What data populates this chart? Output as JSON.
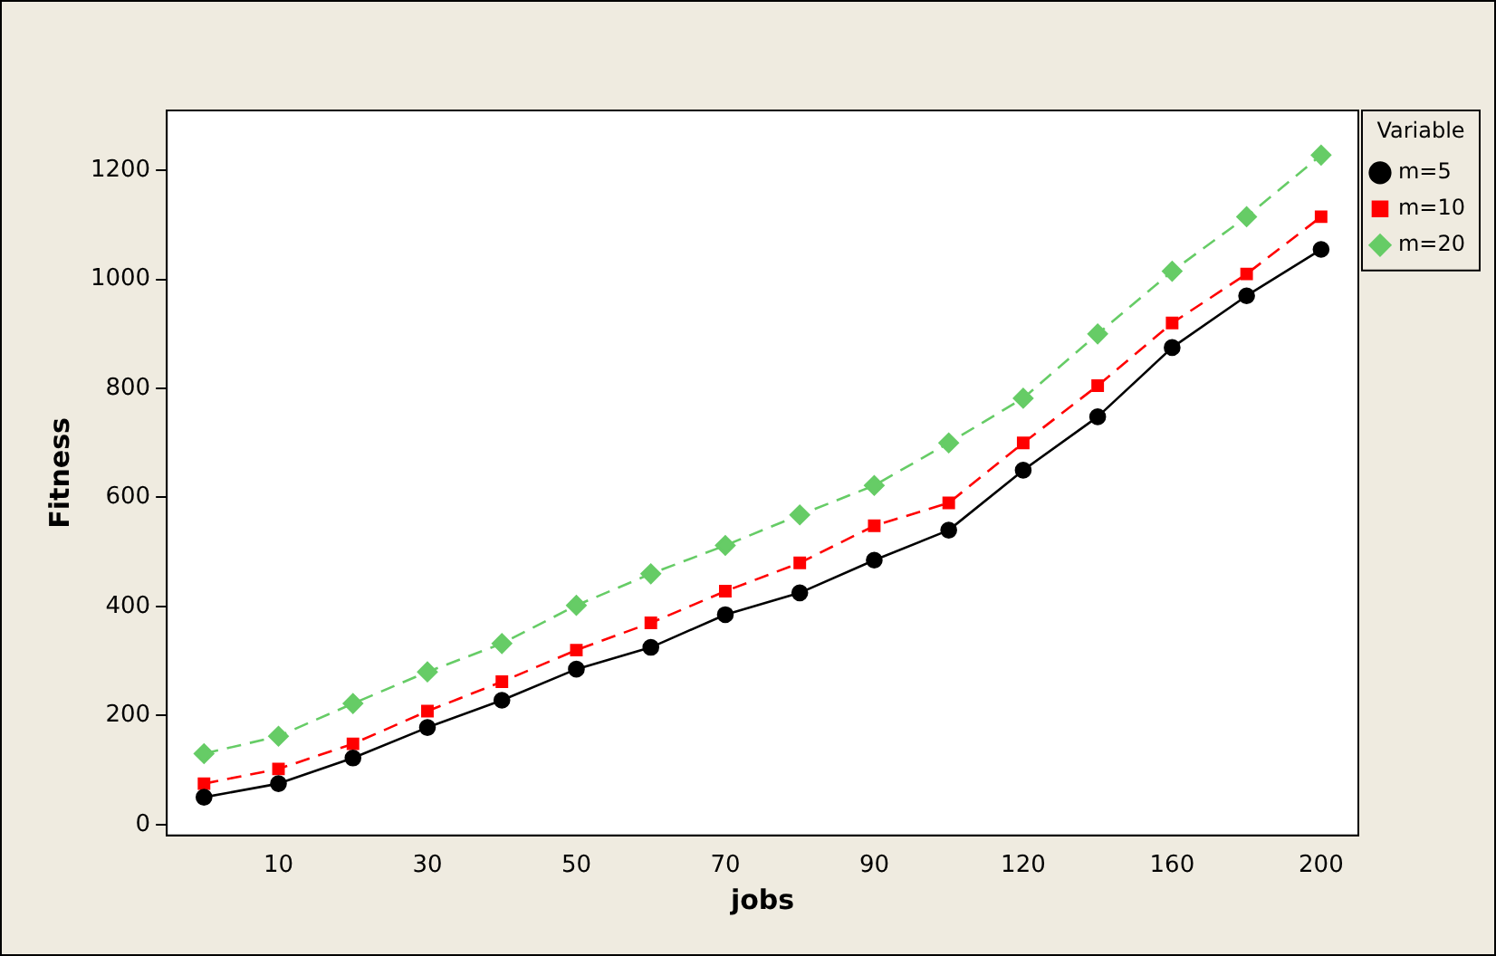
{
  "chart_data": {
    "type": "line",
    "xlabel": "jobs",
    "ylabel": "Fitness",
    "legend_title": "Variable",
    "legend": "top right",
    "grid": false,
    "categories": [
      null,
      "10",
      null,
      "30",
      null,
      "50",
      null,
      "70",
      null,
      "90",
      null,
      "120",
      null,
      "160",
      null,
      "200"
    ],
    "ylim": [
      -20,
      1310
    ],
    "yticks": [
      0,
      200,
      400,
      600,
      800,
      1000,
      1200
    ],
    "series": [
      {
        "name": "m=5",
        "color": "#000000",
        "marker": "circle",
        "line_style": "solid",
        "values": [
          50,
          75,
          122,
          178,
          228,
          285,
          325,
          385,
          425,
          485,
          540,
          650,
          748,
          875,
          970,
          1055
        ]
      },
      {
        "name": "m=10",
        "color": "#ff0000",
        "marker": "square",
        "line_style": "dashed",
        "values": [
          75,
          102,
          148,
          208,
          262,
          320,
          370,
          428,
          480,
          548,
          590,
          700,
          805,
          920,
          1010,
          1115
        ]
      },
      {
        "name": "m=20",
        "color": "#66cc66",
        "marker": "diamond",
        "line_style": "dashed",
        "values": [
          130,
          162,
          222,
          280,
          332,
          402,
          460,
          512,
          568,
          622,
          700,
          782,
          900,
          1015,
          1115,
          1228
        ]
      }
    ]
  }
}
